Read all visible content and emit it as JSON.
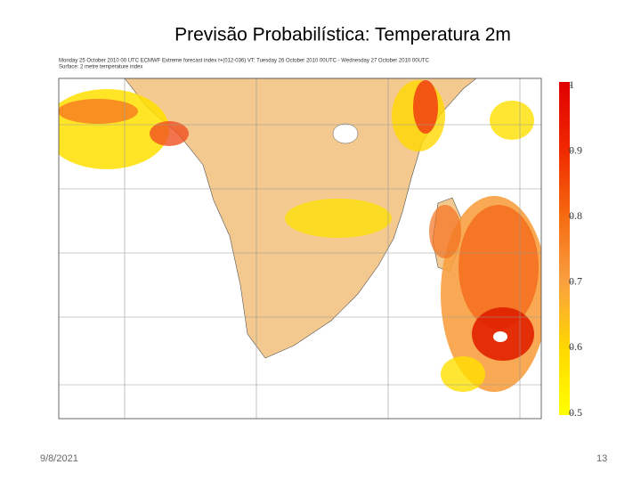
{
  "header": {
    "title": "Previsão Probabilística: Temperatura 2m"
  },
  "figure": {
    "caption_lines": [
      "Monday 25 October 2010 00 UTC ECMWF Extreme forecast index t+(012-036) VT: Tuesday 26 October 2010 00UTC - Wednesday 27 October 2010 00UTC",
      "Surface: 2 metre temperature index"
    ],
    "colorbar": {
      "lim": [
        0.5,
        1
      ],
      "ticks": [
        1,
        0.9,
        0.8,
        0.7,
        0.6,
        0.5
      ]
    }
  },
  "footer": {
    "date": "9/8/2021",
    "page": "13"
  }
}
